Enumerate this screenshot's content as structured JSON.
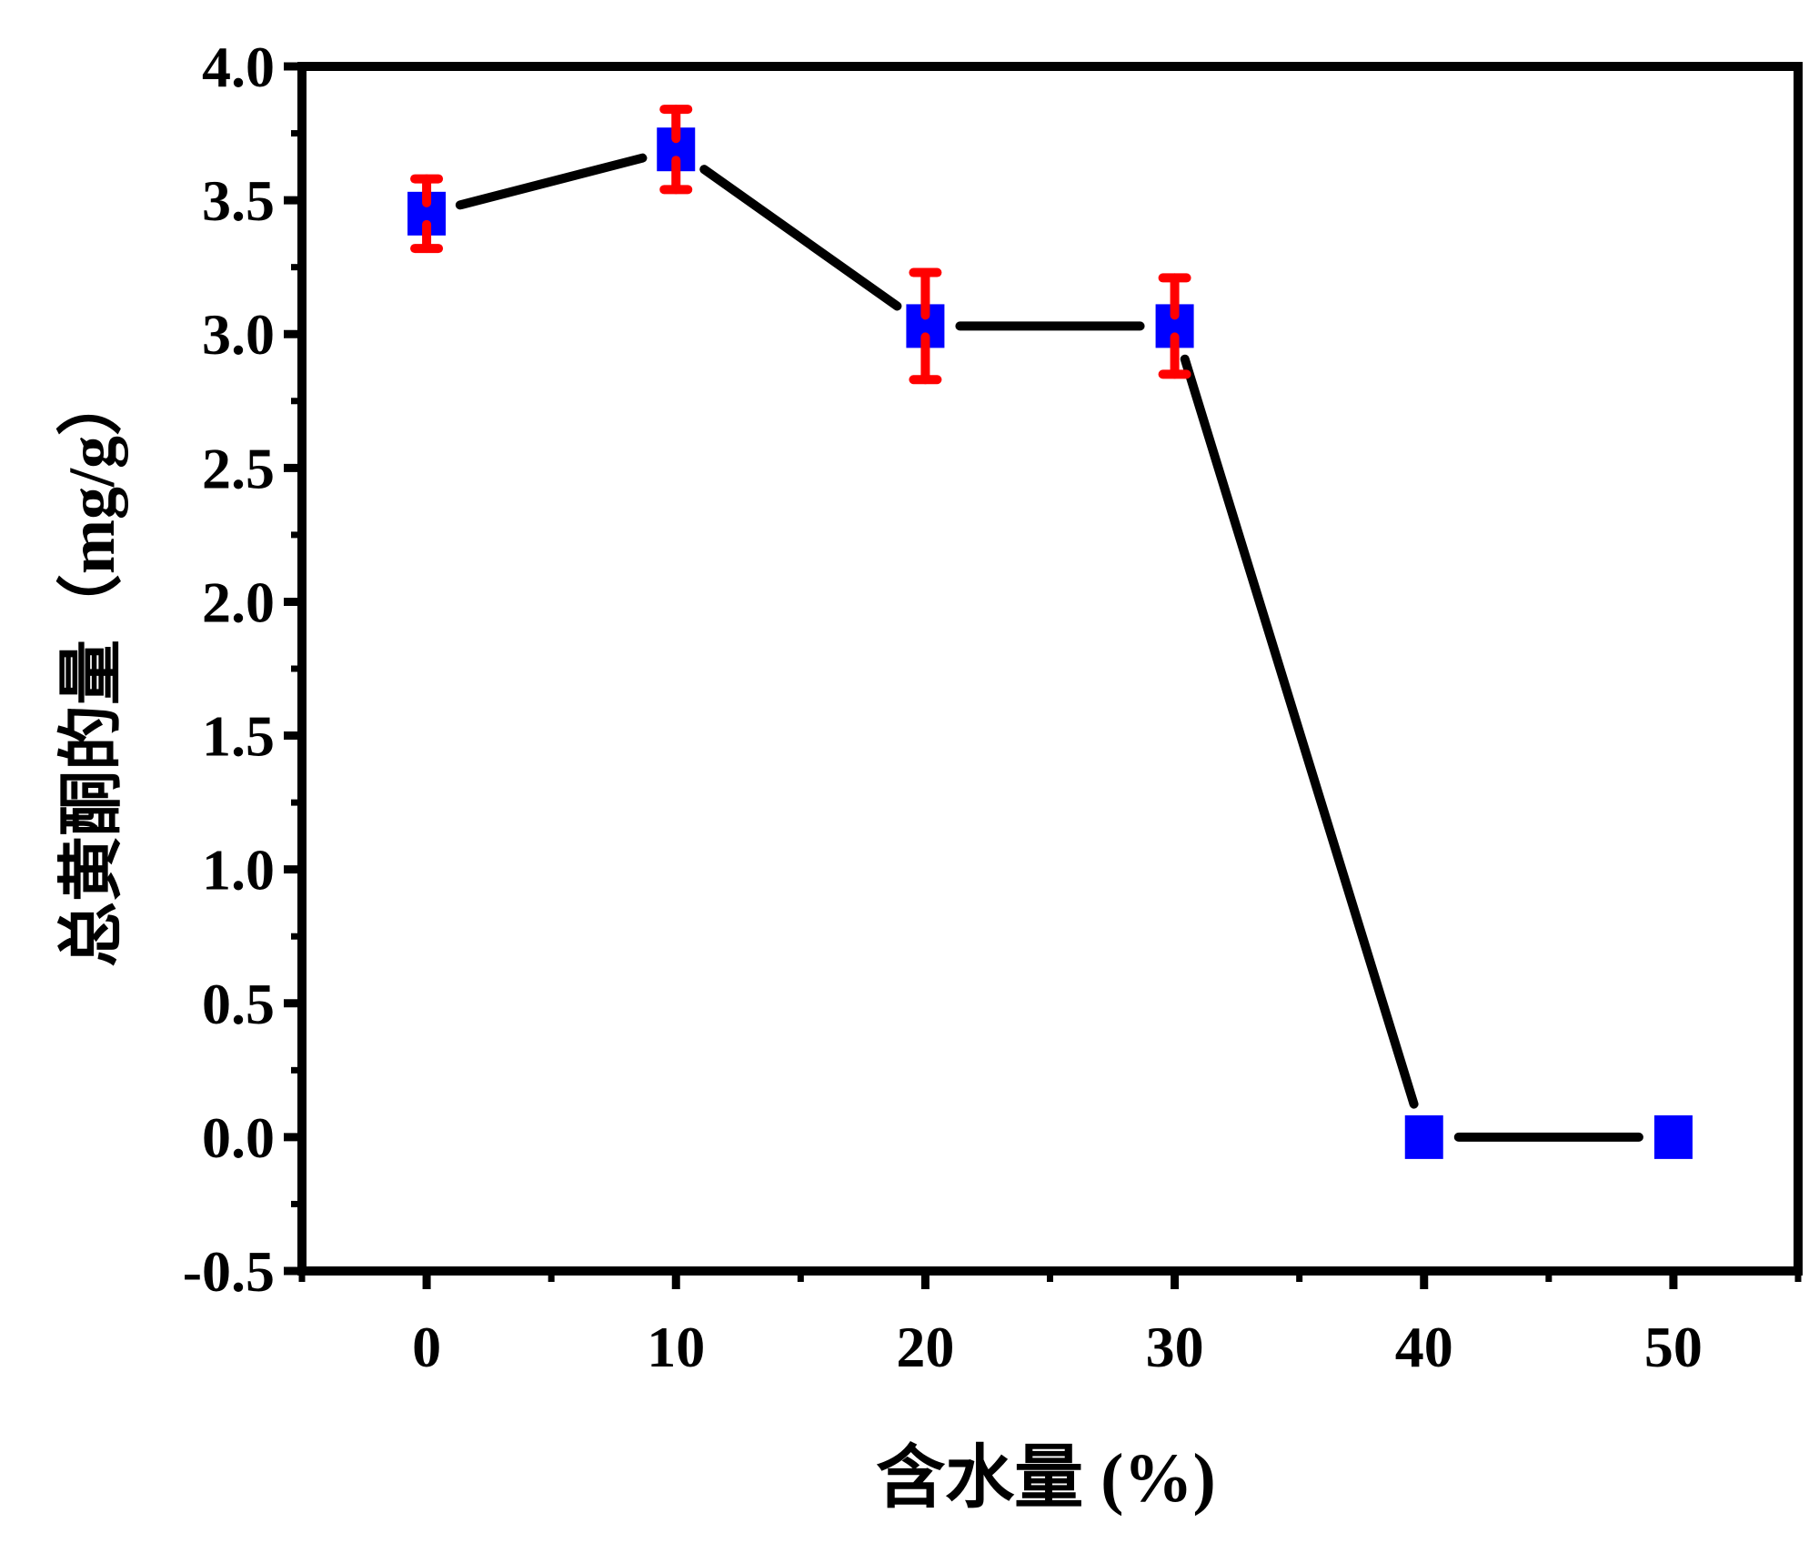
{
  "chart_data": {
    "type": "line",
    "title": "",
    "xlabel": "含水量 (%)",
    "ylabel": "总黄酮的量（mg/g）",
    "xlim": [
      -5,
      55
    ],
    "ylim": [
      -0.5,
      4.0
    ],
    "xticks": [
      "0",
      "10",
      "20",
      "30",
      "40",
      "50"
    ],
    "yticks": [
      "-0.5",
      "0.0",
      "0.5",
      "1.0",
      "1.5",
      "2.0",
      "2.5",
      "3.0",
      "3.5",
      "4.0"
    ],
    "grid": false,
    "series": [
      {
        "name": "总黄酮的量",
        "x": [
          0,
          10,
          20,
          30,
          40,
          50
        ],
        "y": [
          3.45,
          3.69,
          3.03,
          3.03,
          0.0,
          0.0
        ],
        "error": [
          0.13,
          0.15,
          0.2,
          0.18,
          0,
          0
        ],
        "marker_color": "#0000ff",
        "line_color": "#000000",
        "error_color": "#ff0000"
      }
    ]
  }
}
